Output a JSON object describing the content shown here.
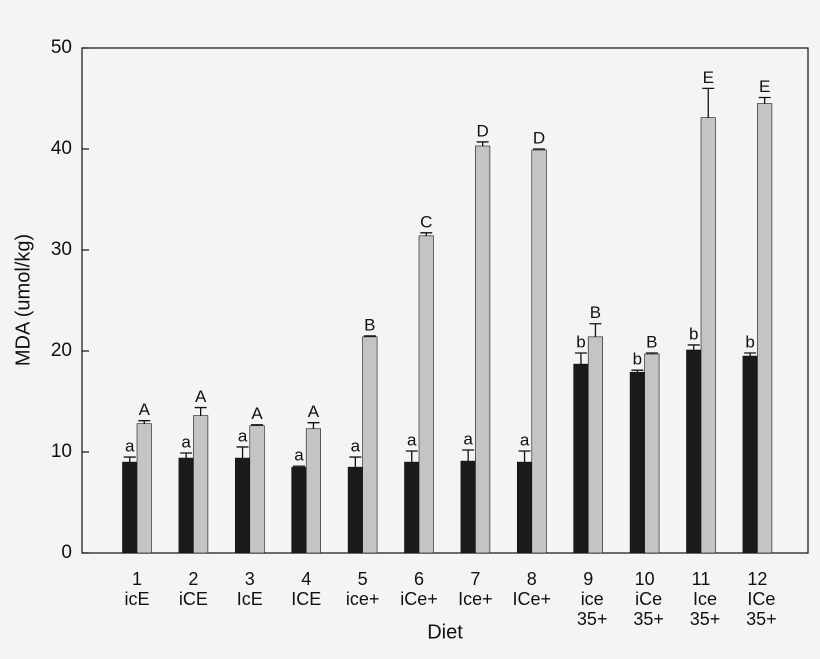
{
  "chart_data": {
    "type": "bar",
    "y_label": "MDA (umol/kg)",
    "x_label": "Diet",
    "categories": [
      [
        "1",
        "icE"
      ],
      [
        "2",
        "iCE"
      ],
      [
        "3",
        "IcE"
      ],
      [
        "4",
        "ICE"
      ],
      [
        "5",
        "ice+"
      ],
      [
        "6",
        "iCe+"
      ],
      [
        "7",
        "Ice+"
      ],
      [
        "8",
        "ICe+"
      ],
      [
        "9",
        "ice",
        "35+"
      ],
      [
        "10",
        "iCe",
        "35+"
      ],
      [
        "11",
        "Ice",
        "35+"
      ],
      [
        "12",
        "ICe",
        "35+"
      ]
    ],
    "series": [
      {
        "color": "#1a1a1a",
        "values": [
          9.0,
          9.4,
          9.4,
          8.5,
          8.5,
          9.0,
          9.1,
          9.0,
          18.7,
          17.9,
          20.1,
          19.5
        ],
        "errors": [
          0.5,
          0.5,
          1.1,
          0.1,
          1.0,
          1.1,
          1.1,
          1.1,
          1.1,
          0.2,
          0.5,
          0.3
        ],
        "letters": [
          "a",
          "a",
          "a",
          "a",
          "a",
          "a",
          "a",
          "a",
          "b",
          "b",
          "b",
          "b"
        ]
      },
      {
        "color": "#c4c4c4",
        "values": [
          12.8,
          13.6,
          12.6,
          12.3,
          21.4,
          31.4,
          40.3,
          39.9,
          21.4,
          19.7,
          43.1,
          44.5
        ],
        "errors": [
          0.3,
          0.8,
          0.1,
          0.6,
          0.1,
          0.3,
          0.4,
          0.1,
          1.3,
          0.1,
          2.9,
          0.6
        ],
        "letters": [
          "A",
          "A",
          "A",
          "A",
          "B",
          "C",
          "D",
          "D",
          "B",
          "B",
          "E",
          "E"
        ]
      }
    ],
    "ylim": [
      0,
      50
    ],
    "yticks": [
      0,
      10,
      20,
      30,
      40,
      50
    ]
  }
}
